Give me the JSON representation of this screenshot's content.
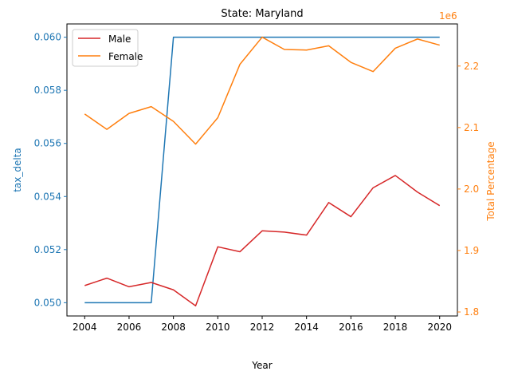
{
  "chart_data": {
    "type": "line",
    "title": "State: Maryland",
    "xlabel": "Year",
    "ylabel_left": "tax_delta",
    "ylabel_right": "Total Percentage",
    "right_offset_label": "1e6",
    "x": [
      2004,
      2005,
      2006,
      2007,
      2008,
      2009,
      2010,
      2011,
      2012,
      2013,
      2014,
      2015,
      2016,
      2017,
      2018,
      2019,
      2020
    ],
    "x_ticks": [
      "2004",
      "2006",
      "2008",
      "2010",
      "2012",
      "2014",
      "2016",
      "2018",
      "2020"
    ],
    "xlim": [
      2003.2,
      2020.8
    ],
    "left_axis": {
      "ylim": [
        0.0495,
        0.0605
      ],
      "ticks": [
        0.05,
        0.052,
        0.054,
        0.056,
        0.058,
        0.06
      ],
      "tick_labels": [
        "0.050",
        "0.052",
        "0.054",
        "0.056",
        "0.058",
        "0.060"
      ],
      "color": "#1f77b4"
    },
    "right_axis": {
      "ylim": [
        1.7935,
        2.2685
      ],
      "ticks": [
        1.8,
        1.9,
        2.0,
        2.1,
        2.2
      ],
      "tick_labels": [
        "1.8",
        "1.9",
        "2.0",
        "2.1",
        "2.2"
      ],
      "color": "#ff7f0e"
    },
    "series": [
      {
        "axis": "left",
        "color": "#1f77b4",
        "values": [
          0.05,
          0.05,
          0.05,
          0.05,
          0.06,
          0.06,
          0.06,
          0.06,
          0.06,
          0.06,
          0.06,
          0.06,
          0.06,
          0.06,
          0.06,
          0.06,
          0.06
        ]
      },
      {
        "name": "Male",
        "axis": "right",
        "color": "#d62728",
        "values": [
          1.843,
          1.855,
          1.841,
          1.848,
          1.836,
          1.81,
          1.906,
          1.898,
          1.932,
          1.93,
          1.925,
          1.978,
          1.955,
          2.002,
          2.022,
          1.995,
          1.973
        ]
      },
      {
        "name": "Female",
        "axis": "right",
        "color": "#ff7f0e",
        "values": [
          2.122,
          2.097,
          2.123,
          2.134,
          2.11,
          2.073,
          2.116,
          2.203,
          2.247,
          2.227,
          2.226,
          2.233,
          2.206,
          2.191,
          2.229,
          2.244,
          2.234
        ]
      }
    ],
    "legend": {
      "position": "top-left",
      "entries": [
        {
          "label": "Male",
          "color": "#d62728"
        },
        {
          "label": "Female",
          "color": "#ff7f0e"
        }
      ]
    },
    "grid": false
  }
}
